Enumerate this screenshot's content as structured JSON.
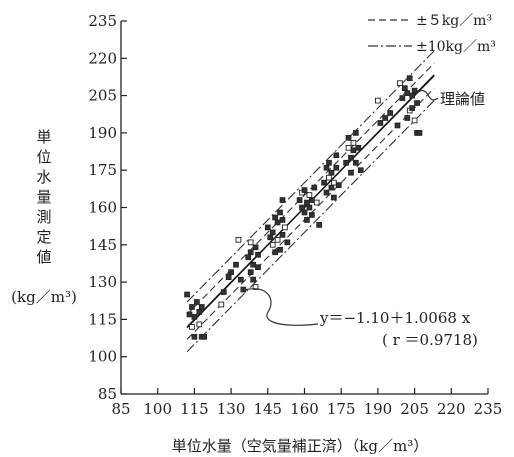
{
  "chart_data": {
    "type": "scatter",
    "title": "",
    "xlabel": "単位水量（空気量補正済）（kg／m³）",
    "ylabel_chars": [
      "単",
      "位",
      "水",
      "量",
      "測",
      "定",
      "値"
    ],
    "ylabel_unit": "(kg／m³)",
    "xlim": [
      85,
      235
    ],
    "ylim": [
      85,
      235
    ],
    "x_ticks": [
      85,
      100,
      115,
      130,
      145,
      160,
      175,
      190,
      205,
      220,
      235
    ],
    "y_ticks": [
      85,
      100,
      115,
      130,
      145,
      160,
      175,
      190,
      205,
      220,
      235
    ],
    "grid": false,
    "legend_position": "top-right",
    "legend": [
      {
        "label": "±５kg／m³",
        "style": "dashed",
        "offset": 5
      },
      {
        "label": "±10kg／m³",
        "style": "dash-dot",
        "offset": 10
      }
    ],
    "theory_label": "理論値",
    "regression_label": "y＝−1.10＋1.0068 x",
    "correlation_label": "( r ＝0.9718)",
    "regression": {
      "intercept": -1.1,
      "slope": 1.0068
    },
    "line_range": [
      112,
      213
    ],
    "points": [
      [
        112,
        125
      ],
      [
        113,
        117
      ],
      [
        114,
        112
      ],
      [
        114,
        120
      ],
      [
        115,
        116
      ],
      [
        115,
        108
      ],
      [
        116,
        122
      ],
      [
        117,
        113
      ],
      [
        117,
        118
      ],
      [
        118,
        108
      ],
      [
        118,
        120
      ],
      [
        119,
        108
      ],
      [
        126,
        121
      ],
      [
        127,
        126
      ],
      [
        129,
        132
      ],
      [
        130,
        134
      ],
      [
        132,
        137
      ],
      [
        133,
        147
      ],
      [
        134,
        131
      ],
      [
        135,
        127
      ],
      [
        137,
        140
      ],
      [
        138,
        134
      ],
      [
        138,
        146
      ],
      [
        138,
        142
      ],
      [
        139,
        137
      ],
      [
        139,
        131
      ],
      [
        140,
        144
      ],
      [
        140,
        128
      ],
      [
        141,
        136
      ],
      [
        141,
        141
      ],
      [
        145,
        152
      ],
      [
        146,
        148
      ],
      [
        147,
        145
      ],
      [
        147,
        150
      ],
      [
        148,
        142
      ],
      [
        148,
        156
      ],
      [
        149,
        154
      ],
      [
        149,
        147
      ],
      [
        150,
        158
      ],
      [
        150,
        143
      ],
      [
        151,
        149
      ],
      [
        151,
        155
      ],
      [
        152,
        152
      ],
      [
        151,
        163
      ],
      [
        153,
        146
      ],
      [
        158,
        163
      ],
      [
        159,
        160
      ],
      [
        159,
        166
      ],
      [
        160,
        158
      ],
      [
        160,
        167
      ],
      [
        161,
        162
      ],
      [
        161,
        155
      ],
      [
        162,
        165
      ],
      [
        162,
        160
      ],
      [
        163,
        157
      ],
      [
        163,
        163
      ],
      [
        164,
        168
      ],
      [
        165,
        162
      ],
      [
        166,
        153
      ],
      [
        168,
        170
      ],
      [
        169,
        176
      ],
      [
        169,
        166
      ],
      [
        170,
        172
      ],
      [
        170,
        178
      ],
      [
        171,
        168
      ],
      [
        171,
        174
      ],
      [
        172,
        164
      ],
      [
        172,
        170
      ],
      [
        173,
        176
      ],
      [
        173,
        181
      ],
      [
        174,
        169
      ],
      [
        177,
        178
      ],
      [
        178,
        184
      ],
      [
        178,
        188
      ],
      [
        179,
        180
      ],
      [
        179,
        174
      ],
      [
        180,
        183
      ],
      [
        180,
        186
      ],
      [
        181,
        178
      ],
      [
        181,
        190
      ],
      [
        182,
        184
      ],
      [
        183,
        175
      ],
      [
        190,
        203
      ],
      [
        191,
        194
      ],
      [
        193,
        196
      ],
      [
        195,
        198
      ],
      [
        198,
        193
      ],
      [
        199,
        210
      ],
      [
        200,
        204
      ],
      [
        201,
        208
      ],
      [
        202,
        196
      ],
      [
        202,
        206
      ],
      [
        203,
        199
      ],
      [
        203,
        212
      ],
      [
        204,
        205
      ],
      [
        204,
        200
      ],
      [
        205,
        207
      ],
      [
        205,
        195
      ],
      [
        206,
        202
      ],
      [
        206,
        190
      ],
      [
        207,
        190
      ]
    ]
  }
}
